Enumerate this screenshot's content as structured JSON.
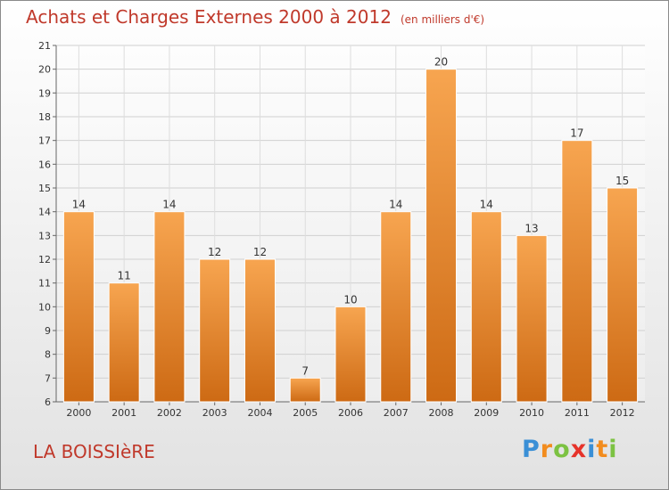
{
  "title": "Achats et Charges Externes 2000 à 2012",
  "unit": "(en milliers d'€)",
  "commune": "LA BOISSIèRE",
  "brand": {
    "letters": [
      "P",
      "r",
      "o",
      "x",
      "i",
      "t",
      "i"
    ],
    "colors": [
      "#3a8fd6",
      "#f28c1e",
      "#7cc242",
      "#e6332a",
      "#3a8fd6",
      "#f28c1e",
      "#7cc242"
    ]
  },
  "colors": {
    "bar_top": "#f7a550",
    "bar_bottom": "#cd6a14",
    "title": "#c0392b"
  },
  "chart_data": {
    "type": "bar",
    "categories": [
      "2000",
      "2001",
      "2002",
      "2003",
      "2004",
      "2005",
      "2006",
      "2007",
      "2008",
      "2009",
      "2010",
      "2011",
      "2012"
    ],
    "values": [
      14,
      11,
      14,
      12,
      12,
      7,
      10,
      14,
      20,
      14,
      13,
      17,
      15
    ],
    "title": "Achats et Charges Externes 2000 à 2012",
    "ylim": [
      6,
      21
    ],
    "yticks": [
      6,
      7,
      8,
      9,
      10,
      11,
      12,
      13,
      14,
      15,
      16,
      17,
      18,
      19,
      20,
      21
    ],
    "grid": true,
    "legend": "none"
  }
}
